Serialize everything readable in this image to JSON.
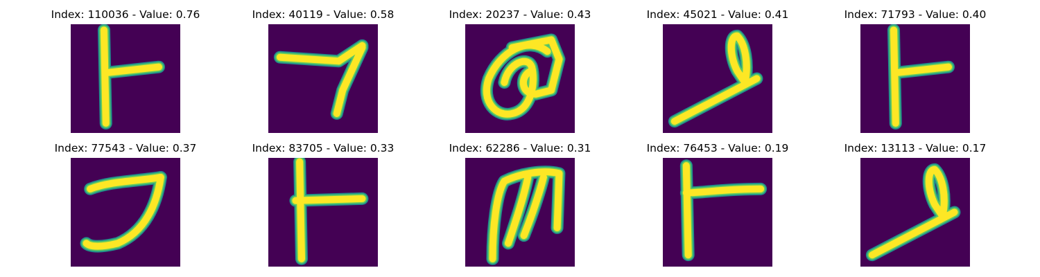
{
  "colors": {
    "background": "#440154",
    "stroke_core": "#fde725",
    "stroke_mid": "#5ec962",
    "stroke_edge": "#21918c"
  },
  "panels": [
    {
      "title": "Index: 110036 - Value: 0.76",
      "index": 110036,
      "value": 0.76,
      "glyph": "stroke-t"
    },
    {
      "title": "Index: 40119 - Value: 0.58",
      "index": 40119,
      "value": 0.58,
      "glyph": "stroke-seven"
    },
    {
      "title": "Index: 20237 - Value: 0.43",
      "index": 20237,
      "value": 0.43,
      "glyph": "stroke-loop-blob"
    },
    {
      "title": "Index: 45021 - Value: 0.41",
      "index": 45021,
      "value": 0.41,
      "glyph": "stroke-loop-diagonal"
    },
    {
      "title": "Index: 71793 - Value: 0.40",
      "index": 71793,
      "value": 0.4,
      "glyph": "stroke-t"
    },
    {
      "title": "Index: 77543 - Value: 0.37",
      "index": 77543,
      "value": 0.37,
      "glyph": "stroke-hook"
    },
    {
      "title": "Index: 83705 - Value: 0.33",
      "index": 83705,
      "value": 0.33,
      "glyph": "stroke-t-thick"
    },
    {
      "title": "Index: 62286 - Value: 0.31",
      "index": 62286,
      "value": 0.31,
      "glyph": "stroke-m"
    },
    {
      "title": "Index: 76453 - Value: 0.19",
      "index": 76453,
      "value": 0.19,
      "glyph": "stroke-t-wide"
    },
    {
      "title": "Index: 13113 - Value: 0.17",
      "index": 13113,
      "value": 0.17,
      "glyph": "stroke-loop-diagonal"
    }
  ]
}
